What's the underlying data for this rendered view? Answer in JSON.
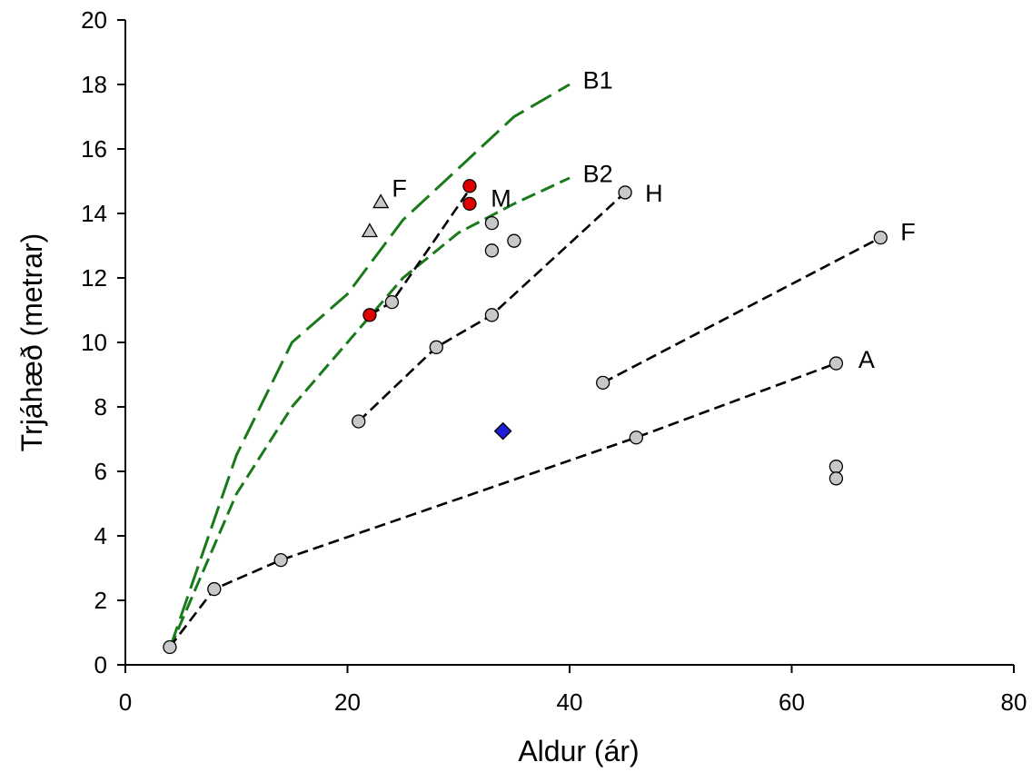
{
  "chart_data": {
    "type": "scatter",
    "title": "",
    "xlabel": "Aldur (ár)",
    "ylabel": "Trjáhæð (metrar)",
    "xlim": [
      0,
      80
    ],
    "ylim": [
      0,
      20
    ],
    "xticks": [
      0,
      20,
      40,
      60,
      80
    ],
    "yticks": [
      0,
      2,
      4,
      6,
      8,
      10,
      12,
      14,
      16,
      18,
      20
    ],
    "grid": false,
    "legend": "none",
    "reference_curves": [
      {
        "label": "B1",
        "color": "#1a7a1a",
        "dash": "long",
        "x": [
          4,
          10,
          15,
          20,
          25,
          30,
          35,
          40
        ],
        "y": [
          0.5,
          6.5,
          10.0,
          11.5,
          13.8,
          15.4,
          17.0,
          18.0
        ]
      },
      {
        "label": "B2",
        "color": "#1a7a1a",
        "dash": "medium",
        "x": [
          4,
          10,
          15,
          20,
          25,
          30,
          35,
          40
        ],
        "y": [
          0.5,
          5.3,
          8.0,
          10.0,
          12.0,
          13.4,
          14.3,
          15.1
        ]
      }
    ],
    "connected_series": [
      {
        "label": "A",
        "color": "#000000",
        "x": [
          4,
          8,
          14,
          46,
          64
        ],
        "y": [
          0.55,
          2.35,
          3.25,
          7.05,
          9.35
        ]
      },
      {
        "label": "F",
        "color": "#000000",
        "x": [
          43,
          68
        ],
        "y": [
          8.75,
          13.25
        ]
      },
      {
        "label": "H",
        "color": "#000000",
        "x": [
          21,
          28,
          33,
          45
        ],
        "y": [
          7.55,
          9.85,
          10.85,
          14.65
        ]
      },
      {
        "label": "M",
        "color": "#000000",
        "x": [
          22,
          24,
          31
        ],
        "y": [
          10.85,
          11.25,
          14.75
        ]
      }
    ],
    "markers": [
      {
        "shape": "circle",
        "fill": "#c8c8c8",
        "x": [
          4,
          8,
          14,
          46,
          64
        ],
        "y": [
          0.55,
          2.35,
          3.25,
          7.05,
          9.35
        ]
      },
      {
        "shape": "circle",
        "fill": "#c8c8c8",
        "x": [
          43,
          68
        ],
        "y": [
          8.75,
          13.25
        ]
      },
      {
        "shape": "circle",
        "fill": "#c8c8c8",
        "x": [
          21,
          28,
          33,
          45
        ],
        "y": [
          7.55,
          9.85,
          10.85,
          14.65
        ]
      },
      {
        "shape": "circle",
        "fill": "#c8c8c8",
        "x": [
          24,
          33,
          33,
          35,
          64,
          64
        ],
        "y": [
          11.25,
          13.7,
          12.85,
          13.15,
          6.15,
          5.78
        ]
      },
      {
        "shape": "circle",
        "fill": "#e00000",
        "x": [
          22,
          31,
          31
        ],
        "y": [
          10.85,
          14.85,
          14.3
        ]
      },
      {
        "shape": "triangle",
        "fill": "#c8c8c8",
        "x": [
          22,
          23
        ],
        "y": [
          13.45,
          14.35
        ]
      },
      {
        "shape": "diamond",
        "fill": "#1f1fd6",
        "x": [
          34
        ],
        "y": [
          7.25
        ]
      }
    ],
    "annotations": [
      {
        "text": "B1",
        "x": 41.2,
        "y": 18.15
      },
      {
        "text": "B2",
        "x": 41.2,
        "y": 15.25
      },
      {
        "text": "H",
        "x": 46.8,
        "y": 14.65
      },
      {
        "text": "M",
        "x": 32.9,
        "y": 14.5
      },
      {
        "text": "F",
        "x": 24.0,
        "y": 14.8
      },
      {
        "text": "F",
        "x": 69.8,
        "y": 13.45
      },
      {
        "text": "A",
        "x": 66.0,
        "y": 9.5
      }
    ]
  }
}
